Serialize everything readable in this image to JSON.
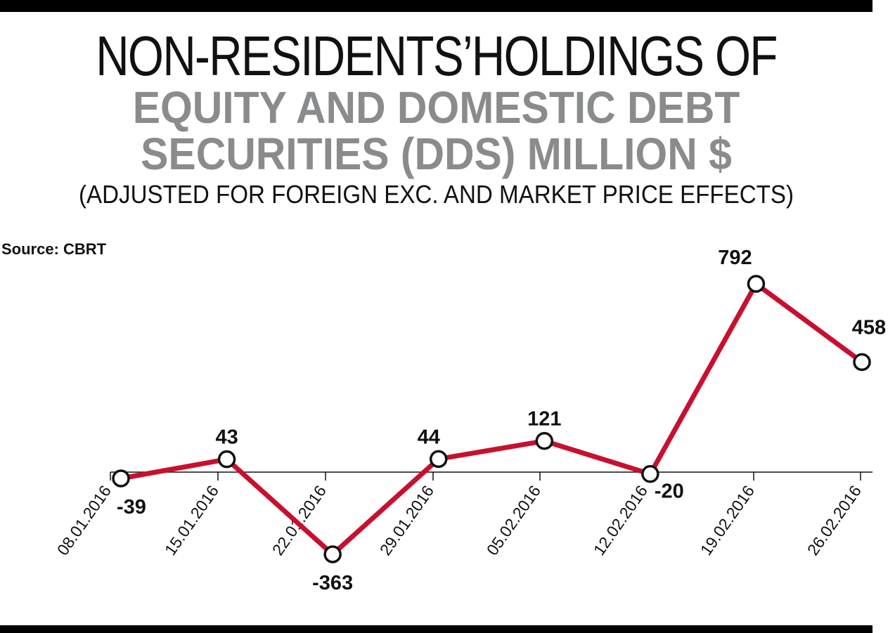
{
  "chart_data": {
    "type": "line",
    "title": "NON-RESIDENTS’HOLDINGS OF",
    "subtitle_line1": "EQUITY AND DOMESTIC DEBT",
    "subtitle_line2": "SECURITIES (DDS) MILLION $",
    "note": "(ADJUSTED FOR FOREIGN EXC. AND MARKET PRICE EFFECTS)",
    "source": "Source: CBRT",
    "xlabel": "",
    "ylabel": "",
    "categories": [
      "08.01.2016",
      "15.01.2016",
      "22.01.2016",
      "29.01.2016",
      "05.02.2016",
      "12.02.2016",
      "19.02.2016",
      "26.02.2016"
    ],
    "series": [
      {
        "name": "Non-residents' holdings",
        "values": [
          -39,
          43,
          -363,
          44,
          121,
          -20,
          792,
          458
        ],
        "labels": [
          "-39",
          "43",
          "-363",
          "44",
          "121",
          "-20",
          "792",
          "458"
        ],
        "color": "#c8102e"
      }
    ],
    "ylim": [
      -363,
      792
    ],
    "grid": false,
    "legend": "none"
  }
}
